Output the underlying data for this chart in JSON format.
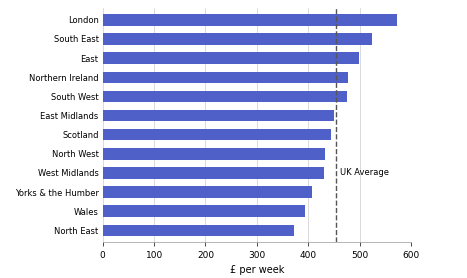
{
  "regions": [
    "North East",
    "Wales",
    "Yorks & the Humber",
    "West Midlands",
    "North West",
    "Scotland",
    "East Midlands",
    "South West",
    "Northern Ireland",
    "East",
    "South East",
    "London"
  ],
  "values": [
    372,
    393,
    408,
    430,
    432,
    444,
    450,
    476,
    478,
    498,
    524,
    572
  ],
  "bar_color": "#4f60c8",
  "uk_average": 455,
  "xlabel": "£ per week",
  "xlim": [
    0,
    600
  ],
  "xticks": [
    0,
    100,
    200,
    300,
    400,
    500,
    600
  ],
  "uk_avg_label": "UK Average",
  "bar_height": 0.6,
  "background_color": "#ffffff",
  "grid_color": "#cccccc",
  "dashed_line_color": "#555555",
  "label_fontsize": 6.0,
  "xlabel_fontsize": 7.0,
  "xtick_fontsize": 6.5
}
